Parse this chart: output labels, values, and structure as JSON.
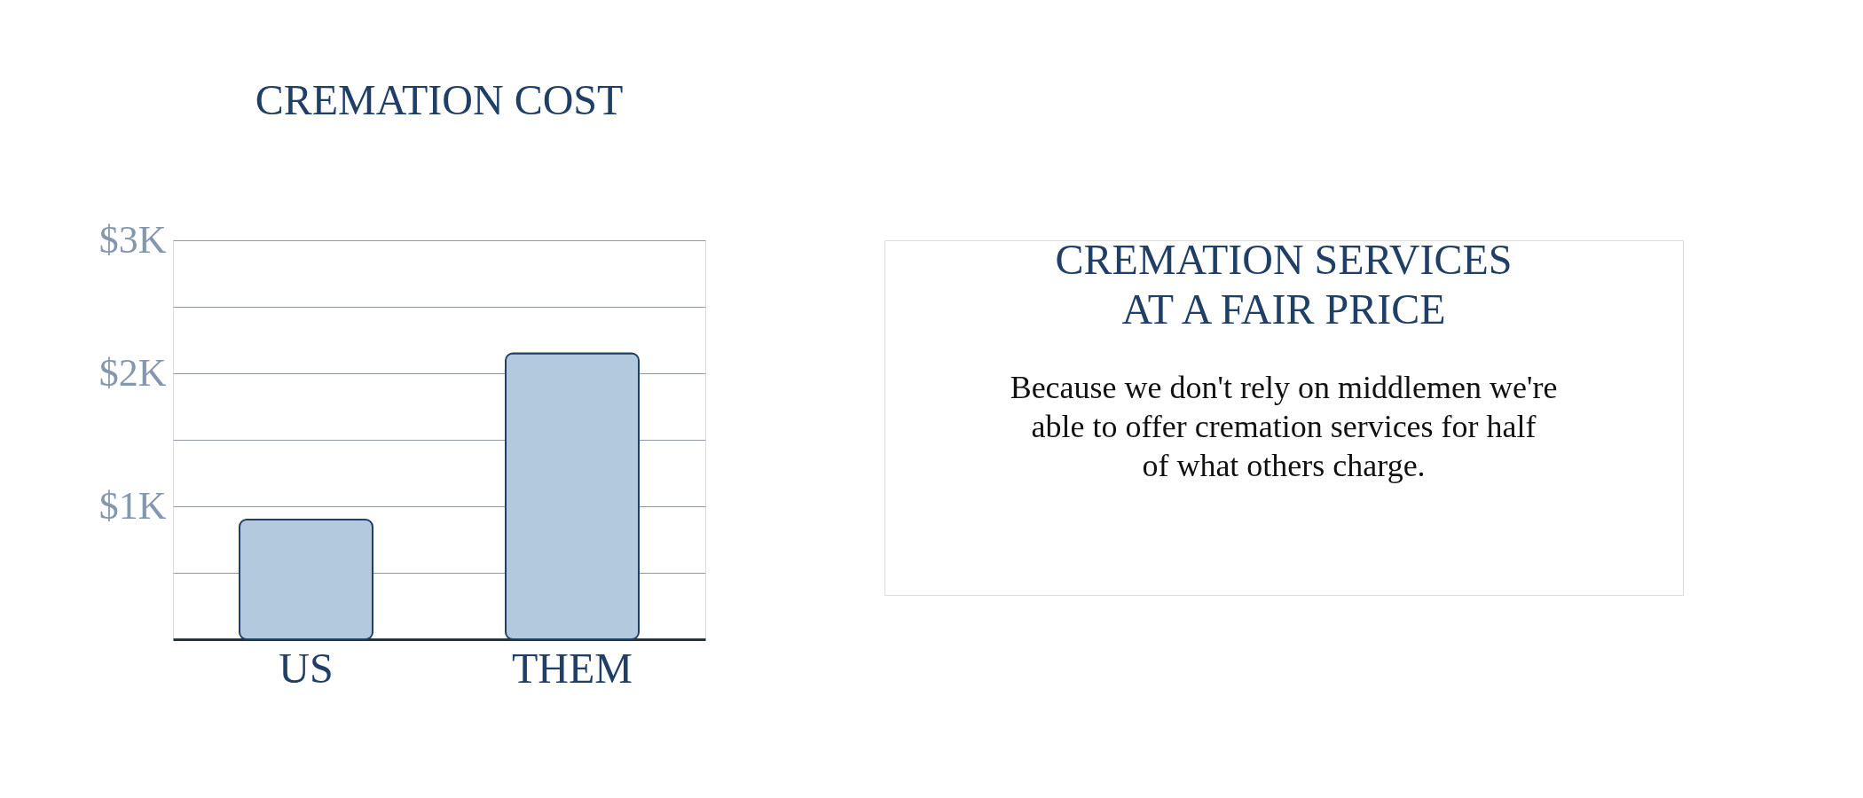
{
  "chart_data": {
    "type": "bar",
    "title": "CREMATION COST",
    "subtitle": "CREMATION SERVICES AT A FAIR PRICE",
    "annotations": [
      "Because we don't rely on middlemen we're able to offer cremation services for half of what others charge."
    ],
    "categories": [
      "US",
      "THEM"
    ],
    "values": [
      900,
      2150
    ],
    "color": "#b3c9de",
    "ylim": [
      0,
      3000
    ],
    "yticks": [
      {
        "value": 500,
        "label": null
      },
      {
        "value": 1000,
        "label": "$1K"
      },
      {
        "value": 1500,
        "label": null
      },
      {
        "value": 2000,
        "label": "$2K"
      },
      {
        "value": 2500,
        "label": null
      },
      {
        "value": 3000,
        "label": "$3K"
      }
    ],
    "grid": "y"
  }
}
